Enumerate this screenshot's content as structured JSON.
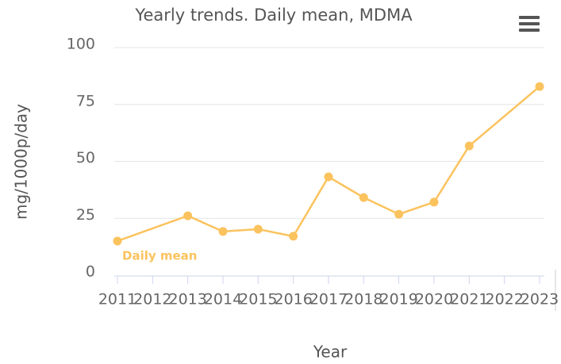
{
  "chart_data": {
    "type": "line",
    "title": "Yearly trends. Daily mean, MDMA",
    "x_label": "Year",
    "y_label": "mg/1000p/day",
    "x": [
      2011,
      2013,
      2014,
      2015,
      2016,
      2017,
      2018,
      2019,
      2020,
      2021,
      2023
    ],
    "series": [
      {
        "name": "Daily mean",
        "color": "#fbc35e",
        "values": [
          15.0,
          26.1,
          19.2,
          20.2,
          17.1,
          43.2,
          34.1,
          26.8,
          32.1,
          56.8,
          82.9
        ]
      }
    ],
    "xlim": [
      2011,
      2023
    ],
    "xticks": [
      2011,
      2012,
      2013,
      2014,
      2015,
      2016,
      2017,
      2018,
      2019,
      2020,
      2021,
      2022,
      2023
    ],
    "ylim": [
      0,
      100
    ],
    "yticks": [
      0,
      25,
      50,
      75,
      100
    ],
    "grid": true
  }
}
